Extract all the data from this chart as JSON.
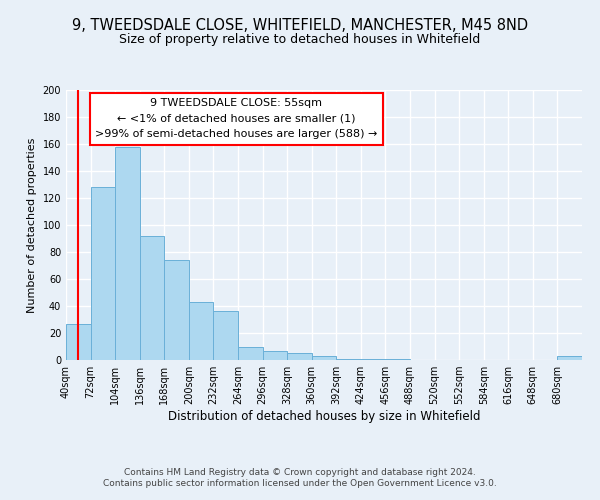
{
  "title": "9, TWEEDSDALE CLOSE, WHITEFIELD, MANCHESTER, M45 8ND",
  "subtitle": "Size of property relative to detached houses in Whitefield",
  "xlabel": "Distribution of detached houses by size in Whitefield",
  "ylabel": "Number of detached properties",
  "bin_labels": [
    "40sqm",
    "72sqm",
    "104sqm",
    "136sqm",
    "168sqm",
    "200sqm",
    "232sqm",
    "264sqm",
    "296sqm",
    "328sqm",
    "360sqm",
    "392sqm",
    "424sqm",
    "456sqm",
    "488sqm",
    "520sqm",
    "552sqm",
    "584sqm",
    "616sqm",
    "648sqm",
    "680sqm"
  ],
  "bar_heights": [
    27,
    128,
    158,
    92,
    74,
    43,
    36,
    10,
    7,
    5,
    3,
    1,
    1,
    1,
    0,
    0,
    0,
    0,
    0,
    0,
    3
  ],
  "bar_color": "#add8f0",
  "bar_edgecolor": "#6ab0d8",
  "ylim": [
    0,
    200
  ],
  "yticks": [
    0,
    20,
    40,
    60,
    80,
    100,
    120,
    140,
    160,
    180,
    200
  ],
  "annotation_title": "9 TWEEDSDALE CLOSE: 55sqm",
  "annotation_line1": "← <1% of detached houses are smaller (1)",
  "annotation_line2": ">99% of semi-detached houses are larger (588) →",
  "footer_line1": "Contains HM Land Registry data © Crown copyright and database right 2024.",
  "footer_line2": "Contains public sector information licensed under the Open Government Licence v3.0.",
  "background_color": "#e8f0f8",
  "plot_bg_color": "#e8f0f8",
  "grid_color": "#ffffff",
  "title_fontsize": 10.5,
  "subtitle_fontsize": 9,
  "xlabel_fontsize": 8.5,
  "ylabel_fontsize": 8,
  "tick_fontsize": 7,
  "annotation_fontsize": 8,
  "footer_fontsize": 6.5
}
